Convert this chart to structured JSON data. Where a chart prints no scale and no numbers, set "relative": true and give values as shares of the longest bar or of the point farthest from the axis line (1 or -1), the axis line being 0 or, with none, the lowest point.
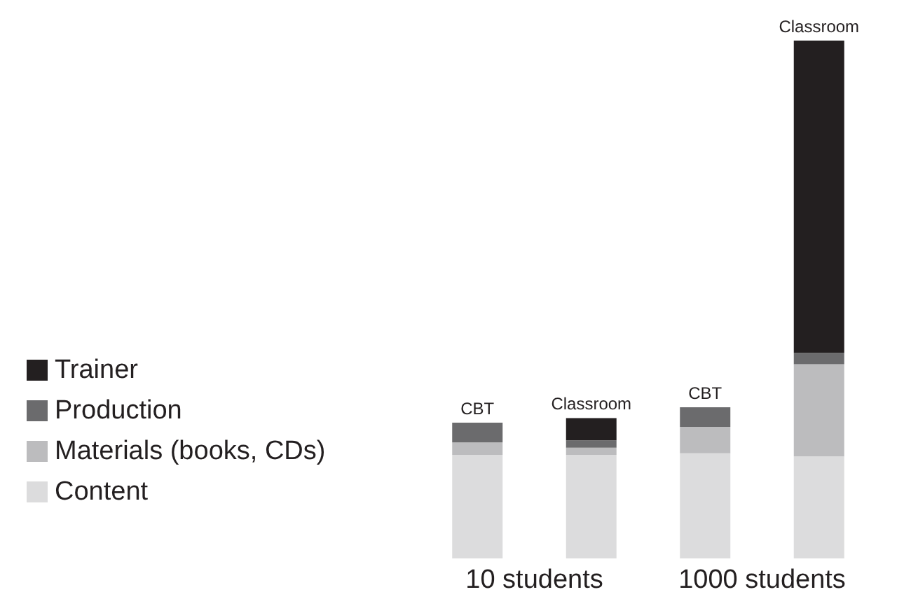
{
  "chart_data": {
    "type": "bar",
    "stacked": true,
    "relative": true,
    "categories": [
      "CBT",
      "Classroom",
      "CBT",
      "Classroom"
    ],
    "series": [
      {
        "name": "Content",
        "color": "#dcdcdd",
        "values": [
          0.2,
          0.2,
          0.203,
          0.197
        ]
      },
      {
        "name": "Materials (books, CDs)",
        "color": "#bcbcbe",
        "values": [
          0.024,
          0.014,
          0.051,
          0.178
        ]
      },
      {
        "name": "Production",
        "color": "#6b6b6d",
        "values": [
          0.038,
          0.014,
          0.038,
          0.022
        ]
      },
      {
        "name": "Trainer",
        "color": "#231f20",
        "values": [
          0,
          0.043,
          0,
          0.603
        ]
      }
    ],
    "annotations": [
      "10 students",
      "1000 students"
    ],
    "legend": "left"
  }
}
